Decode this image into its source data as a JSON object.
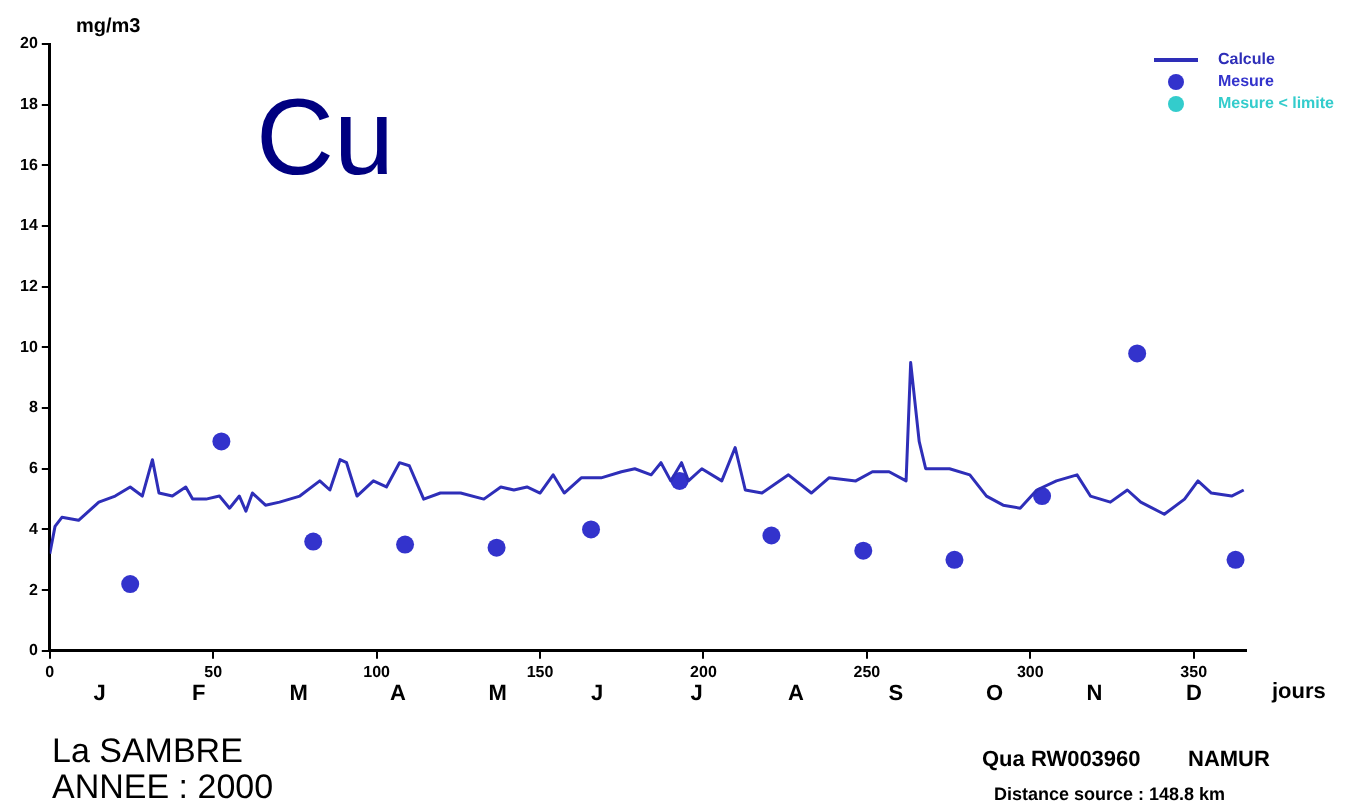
{
  "chart_data": {
    "type": "line",
    "title": "Cu",
    "ylabel": "mg/m3",
    "xlabel": "jours",
    "annotations": [
      "J",
      "F",
      "M",
      "A",
      "M",
      "J",
      "J",
      "A",
      "S",
      "O",
      "N",
      "D",
      "La SAMBRE",
      "ANNEE : 2000",
      "Qua RW003960",
      "NAMUR",
      "Distance source : 148.8 km"
    ],
    "xlim": [
      0,
      366
    ],
    "xticks": [
      0,
      50,
      100,
      150,
      200,
      250,
      300,
      350
    ],
    "ylim": [
      0,
      20
    ],
    "yticks": [
      0,
      2,
      4,
      6,
      8,
      10,
      12,
      14,
      16,
      18,
      20
    ],
    "grid": false,
    "legend": "top right",
    "series": [
      {
        "name": "Calcule",
        "color": "#2e2eb8",
        "marker": "none",
        "line_style": "solid",
        "x": [
          0,
          1.6,
          3.7,
          8.8,
          15,
          20,
          24.6,
          28.3,
          31.4,
          33.4,
          37.5,
          41.6,
          43.7,
          47.8,
          51.9,
          55,
          58,
          60,
          62,
          66,
          70.3,
          76.5,
          82.6,
          85.7,
          88.8,
          90.8,
          94,
          99,
          103,
          107,
          110,
          114.4,
          119.5,
          125.7,
          132.8,
          138,
          142,
          146,
          150,
          154,
          157.4,
          162.6,
          168.7,
          174.9,
          179,
          184,
          187,
          190,
          193.3,
          195.4,
          199.5,
          205.6,
          209.7,
          212.8,
          217.9,
          226,
          233,
          238.4,
          246.6,
          251.7,
          256.8,
          262,
          263.4,
          266,
          268,
          275.3,
          281.5,
          286.6,
          291.7,
          296.9,
          302,
          308,
          314.3,
          318.4,
          324.5,
          329.7,
          333.8,
          341,
          347.2,
          351.3,
          355.4,
          361.6,
          365.3
        ],
        "values": [
          3.2,
          4.1,
          4.4,
          4.3,
          4.9,
          5.1,
          5.4,
          5.1,
          6.3,
          5.2,
          5.1,
          5.4,
          5.0,
          5.0,
          5.1,
          4.7,
          5.1,
          4.6,
          5.2,
          4.8,
          4.9,
          5.1,
          5.6,
          5.3,
          6.3,
          6.2,
          5.1,
          5.6,
          5.4,
          6.2,
          6.1,
          5.0,
          5.2,
          5.2,
          5.0,
          5.4,
          5.3,
          5.4,
          5.2,
          5.8,
          5.2,
          5.7,
          5.7,
          5.9,
          6.0,
          5.8,
          6.2,
          5.6,
          6.2,
          5.6,
          6.0,
          5.6,
          6.7,
          5.3,
          5.2,
          5.8,
          5.2,
          5.7,
          5.6,
          5.9,
          5.9,
          5.6,
          9.5,
          6.9,
          6.0,
          6.0,
          5.8,
          5.1,
          4.8,
          4.7,
          5.3,
          5.6,
          5.8,
          5.1,
          4.9,
          5.3,
          4.9,
          4.5,
          5.0,
          5.6,
          5.2,
          5.1,
          5.3
        ]
      },
      {
        "name": "Mesure",
        "type": "scatter",
        "color": "#3333cc",
        "marker": "circle",
        "x": [
          24.6,
          52.5,
          80.6,
          108.7,
          136.7,
          165.6,
          192.7,
          220.8,
          248.9,
          276.8,
          303.6,
          332.7,
          362.8
        ],
        "values": [
          2.2,
          6.9,
          3.6,
          3.5,
          3.4,
          4.0,
          5.6,
          3.8,
          3.3,
          3.0,
          5.1,
          9.8,
          3.0
        ]
      },
      {
        "name": "Mesure < limite",
        "type": "scatter",
        "color": "#33cccc",
        "marker": "circle"
      }
    ]
  }
}
